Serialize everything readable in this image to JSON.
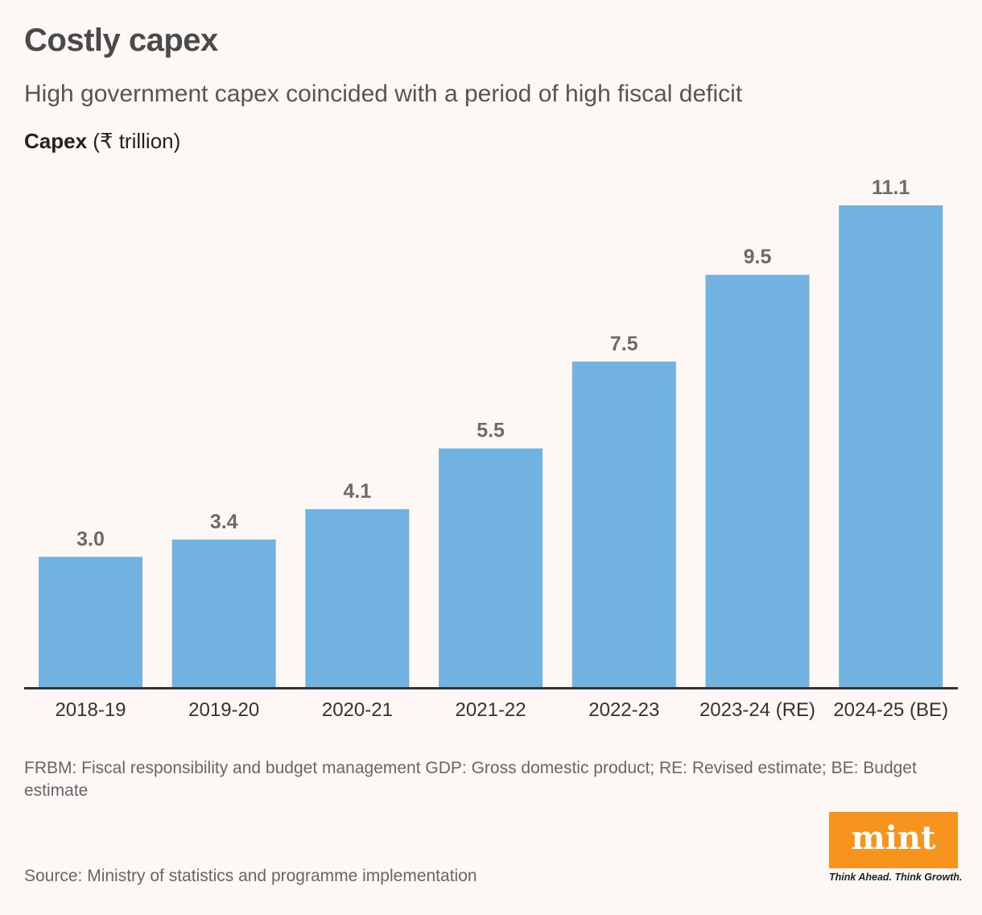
{
  "title": "Costly capex",
  "subtitle": "High government capex coincided with a period of high fiscal deficit",
  "ylabel_bold": "Capex",
  "ylabel_unit": "(₹ trillion)",
  "footnote": "FRBM: Fiscal responsibility and budget management GDP: Gross domestic product; RE: Revised estimate; BE: Budget estimate",
  "source": "Source: Ministry of statistics and programme implementation",
  "logo": {
    "name": "mint",
    "tagline": "Think Ahead. Think Growth.",
    "color": "#f7941d"
  },
  "colors": {
    "bar": "#72b2e1",
    "label": "#6b6b6b",
    "axis": "#333333"
  },
  "chart_data": {
    "type": "bar",
    "title": "Costly capex",
    "subtitle": "High government capex coincided with a period of high fiscal deficit",
    "ylabel": "Capex (₹ trillion)",
    "xlabel": "",
    "categories": [
      "2018-19",
      "2019-20",
      "2020-21",
      "2021-22",
      "2022-23",
      "2023-24 (RE)",
      "2024-25 (BE)"
    ],
    "values": [
      3.0,
      3.4,
      4.1,
      5.5,
      7.5,
      9.5,
      11.1
    ],
    "value_labels": [
      "3.0",
      "3.4",
      "4.1",
      "5.5",
      "7.5",
      "9.5",
      "11.1"
    ],
    "ylim": [
      0,
      11.1
    ],
    "grid": false,
    "legend": "none"
  }
}
